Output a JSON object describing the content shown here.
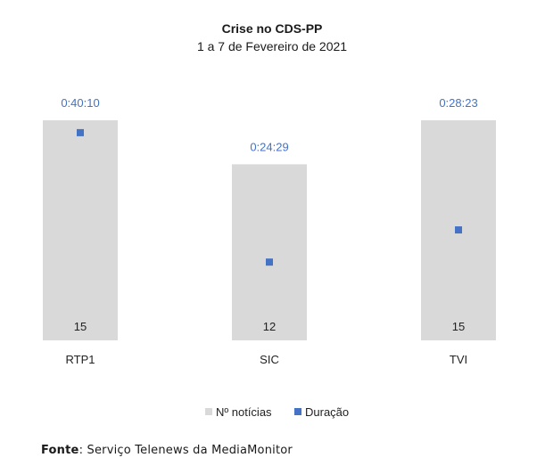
{
  "chart_data": {
    "type": "bar",
    "title": "Crise no CDS-PP",
    "subtitle": "1 a 7 de Fevereiro de 2021",
    "categories": [
      "RTP1",
      "SIC",
      "TVI"
    ],
    "series": [
      {
        "name": "Nº notícias",
        "axis": "primary",
        "color": "#d9d9d9",
        "values": [
          15,
          12,
          15
        ]
      },
      {
        "name": "Duração",
        "axis": "secondary",
        "color": "#4472c4",
        "marker": "square",
        "values": [
          "0:40:10",
          "0:24:29",
          "0:28:23"
        ]
      }
    ],
    "legend_position": "bottom",
    "grid": false
  },
  "source": {
    "label": "Fonte",
    "text": "Serviço Telenews da MediaMonitor"
  }
}
